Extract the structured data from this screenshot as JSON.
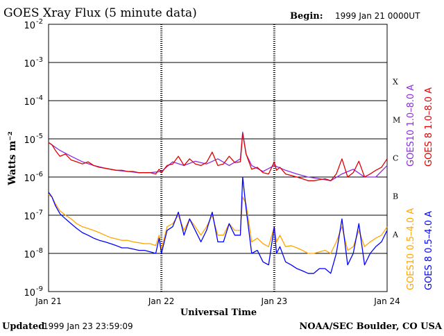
{
  "header": {
    "title": "GOES Xray Flux (5 minute data)",
    "begin_label": "Begin:",
    "begin_value": "1999 Jan 21 0000UT"
  },
  "footer": {
    "updated_label": "Updated",
    "updated_value": "1999 Jan 23 23:59:09",
    "credit": "NOAA/SEC Boulder, CO USA"
  },
  "chart_data": {
    "type": "line",
    "title": "GOES Xray Flux (5 minute data)",
    "xlabel": "Universal Time",
    "ylabel": "Watts m⁻²",
    "yscale": "log",
    "ylim": [
      1e-09,
      0.01
    ],
    "xlim": [
      0,
      3
    ],
    "x_ticks": [
      {
        "x": 0,
        "label": "Jan 21"
      },
      {
        "x": 1,
        "label": "Jan 22"
      },
      {
        "x": 2,
        "label": "Jan 23"
      },
      {
        "x": 3,
        "label": "Jan 24"
      }
    ],
    "y_ticks": [
      {
        "exp": -2,
        "base": "10",
        "sup": "-2"
      },
      {
        "exp": -3,
        "base": "10",
        "sup": "-3"
      },
      {
        "exp": -4,
        "base": "10",
        "sup": "-4"
      },
      {
        "exp": -5,
        "base": "10",
        "sup": "-5"
      },
      {
        "exp": -6,
        "base": "10",
        "sup": "-6"
      },
      {
        "exp": -7,
        "base": "10",
        "sup": "-7"
      },
      {
        "exp": -8,
        "base": "10",
        "sup": "-8"
      },
      {
        "exp": -9,
        "base": "10",
        "sup": "-9"
      }
    ],
    "flare_classes": [
      {
        "label": "X",
        "exp": -3.5
      },
      {
        "label": "M",
        "exp": -4.5
      },
      {
        "label": "C",
        "exp": -5.5
      },
      {
        "label": "B",
        "exp": -6.5
      },
      {
        "label": "A",
        "exp": -7.5
      }
    ],
    "grid": true,
    "series": [
      {
        "name": "GOES10 0.5–4.0 A",
        "color": "#ffa500",
        "x": [
          0,
          0.03,
          0.06,
          0.1,
          0.15,
          0.2,
          0.25,
          0.3,
          0.35,
          0.4,
          0.45,
          0.5,
          0.55,
          0.6,
          0.65,
          0.7,
          0.75,
          0.8,
          0.85,
          0.9,
          0.95,
          0.98,
          1.0,
          1.05,
          1.1,
          1.15,
          1.2,
          1.25,
          1.3,
          1.35,
          1.4,
          1.45,
          1.5,
          1.55,
          1.6,
          1.65,
          1.7,
          1.72,
          1.75,
          1.8,
          1.85,
          1.9,
          1.95,
          2.0,
          2.02,
          2.05,
          2.1,
          2.15,
          2.2,
          2.25,
          2.3,
          2.35,
          2.4,
          2.45,
          2.5,
          2.55,
          2.6,
          2.65,
          2.7,
          2.75,
          2.8,
          2.85,
          2.9,
          2.95,
          3.0
        ],
        "y": [
          3.5e-07,
          3e-07,
          2e-07,
          1.3e-07,
          1e-07,
          8e-08,
          6e-08,
          5e-08,
          4.5e-08,
          4e-08,
          3.5e-08,
          3e-08,
          2.6e-08,
          2.4e-08,
          2.2e-08,
          2.2e-08,
          2e-08,
          1.9e-08,
          1.8e-08,
          1.8e-08,
          1.6e-08,
          3e-08,
          1.3e-08,
          5e-08,
          6e-08,
          1e-07,
          4e-08,
          8e-08,
          5e-08,
          3e-08,
          5e-08,
          1e-07,
          3e-08,
          3e-08,
          6e-08,
          4e-08,
          4e-08,
          3e-07,
          2e-07,
          2e-08,
          2.5e-08,
          1.8e-08,
          1.5e-08,
          5e-08,
          2e-08,
          3e-08,
          1.5e-08,
          1.6e-08,
          1.4e-08,
          1.2e-08,
          1e-08,
          1e-08,
          1.1e-08,
          1.2e-08,
          1e-08,
          2e-08,
          5e-08,
          1.2e-08,
          1.5e-08,
          4e-08,
          1.5e-08,
          2e-08,
          2.5e-08,
          3e-08,
          5e-08
        ]
      },
      {
        "name": "GOES 8 0.5–4.0 A",
        "color": "#0000ff",
        "x": [
          0,
          0.03,
          0.06,
          0.1,
          0.15,
          0.2,
          0.25,
          0.3,
          0.35,
          0.4,
          0.45,
          0.5,
          0.55,
          0.6,
          0.65,
          0.7,
          0.75,
          0.8,
          0.85,
          0.9,
          0.95,
          0.98,
          1.0,
          1.05,
          1.1,
          1.15,
          1.2,
          1.25,
          1.3,
          1.35,
          1.4,
          1.45,
          1.5,
          1.55,
          1.6,
          1.65,
          1.7,
          1.72,
          1.75,
          1.8,
          1.85,
          1.9,
          1.95,
          2.0,
          2.02,
          2.05,
          2.1,
          2.15,
          2.2,
          2.25,
          2.3,
          2.35,
          2.4,
          2.45,
          2.5,
          2.55,
          2.6,
          2.65,
          2.7,
          2.75,
          2.8,
          2.85,
          2.9,
          2.95,
          3.0
        ],
        "y": [
          4e-07,
          3e-07,
          1.8e-07,
          1.1e-07,
          8e-08,
          6e-08,
          4.5e-08,
          3.5e-08,
          3e-08,
          2.5e-08,
          2.2e-08,
          2e-08,
          1.8e-08,
          1.6e-08,
          1.4e-08,
          1.4e-08,
          1.3e-08,
          1.2e-08,
          1.2e-08,
          1.1e-08,
          1e-08,
          2.5e-08,
          1e-08,
          4e-08,
          5e-08,
          1.2e-07,
          3e-08,
          8e-08,
          4e-08,
          2e-08,
          4e-08,
          1.2e-07,
          2e-08,
          2e-08,
          6e-08,
          3e-08,
          3e-08,
          1e-06,
          1.5e-07,
          1e-08,
          1.2e-08,
          6e-09,
          5e-09,
          5e-08,
          1e-08,
          1.5e-08,
          6e-09,
          5e-09,
          4e-09,
          3.5e-09,
          3e-09,
          3e-09,
          4e-09,
          4e-09,
          3e-09,
          1e-08,
          8e-08,
          5e-09,
          1e-08,
          6e-08,
          5e-09,
          1e-08,
          1.5e-08,
          2e-08,
          4e-08
        ]
      },
      {
        "name": "GOES10 1.0–8.0 A",
        "color": "#8a2be2",
        "x": [
          0,
          0.1,
          0.2,
          0.3,
          0.4,
          0.5,
          0.6,
          0.7,
          0.8,
          0.9,
          1.0,
          1.1,
          1.2,
          1.3,
          1.4,
          1.5,
          1.6,
          1.7,
          1.72,
          1.75,
          1.8,
          1.9,
          2.0,
          2.1,
          2.2,
          2.3,
          2.4,
          2.5,
          2.6,
          2.7,
          2.8,
          2.9,
          3.0
        ],
        "y": [
          8e-06,
          5e-06,
          3.5e-06,
          2.5e-06,
          2e-06,
          1.7e-06,
          1.5e-06,
          1.4e-06,
          1.3e-06,
          1.3e-06,
          1.4e-06,
          2.5e-06,
          2e-06,
          2.6e-06,
          2.2e-06,
          3e-06,
          2e-06,
          3e-06,
          1.5e-05,
          4e-06,
          2e-06,
          1.4e-06,
          2e-06,
          1.5e-06,
          1.2e-06,
          1e-06,
          9e-07,
          8e-07,
          1.2e-06,
          1.6e-06,
          1e-06,
          1e-06,
          2e-06
        ]
      },
      {
        "name": "GOES 8 1.0–8.0 A",
        "color": "#e00000",
        "x": [
          0,
          0.03,
          0.06,
          0.1,
          0.15,
          0.2,
          0.25,
          0.3,
          0.35,
          0.4,
          0.45,
          0.5,
          0.55,
          0.6,
          0.65,
          0.7,
          0.75,
          0.8,
          0.85,
          0.9,
          0.95,
          0.98,
          1.0,
          1.05,
          1.1,
          1.15,
          1.2,
          1.25,
          1.3,
          1.35,
          1.4,
          1.45,
          1.5,
          1.55,
          1.6,
          1.65,
          1.7,
          1.72,
          1.75,
          1.8,
          1.85,
          1.9,
          1.95,
          2.0,
          2.02,
          2.05,
          2.1,
          2.15,
          2.2,
          2.25,
          2.3,
          2.35,
          2.4,
          2.45,
          2.5,
          2.55,
          2.6,
          2.65,
          2.7,
          2.75,
          2.8,
          2.85,
          2.9,
          2.95,
          3.0
        ],
        "y": [
          8e-06,
          7e-06,
          5e-06,
          3.5e-06,
          4e-06,
          2.8e-06,
          2.5e-06,
          2.2e-06,
          2.5e-06,
          2e-06,
          1.8e-06,
          1.7e-06,
          1.6e-06,
          1.5e-06,
          1.5e-06,
          1.4e-06,
          1.4e-06,
          1.3e-06,
          1.3e-06,
          1.3e-06,
          1.2e-06,
          1.6e-06,
          1.3e-06,
          2e-06,
          2.2e-06,
          3.5e-06,
          2e-06,
          3e-06,
          2.2e-06,
          2e-06,
          2.4e-06,
          4.5e-06,
          2e-06,
          2.2e-06,
          3.5e-06,
          2.4e-06,
          2.5e-06,
          1.4e-05,
          4e-06,
          1.6e-06,
          1.8e-06,
          1.3e-06,
          1.2e-06,
          2.5e-06,
          1.5e-06,
          1.8e-06,
          1.2e-06,
          1.1e-06,
          1e-06,
          9e-07,
          8e-07,
          8e-07,
          8.5e-07,
          9e-07,
          8e-07,
          1.2e-06,
          3e-06,
          1e-06,
          1.3e-06,
          2.6e-06,
          1e-06,
          1.2e-06,
          1.5e-06,
          1.8e-06,
          3e-06
        ]
      }
    ]
  }
}
